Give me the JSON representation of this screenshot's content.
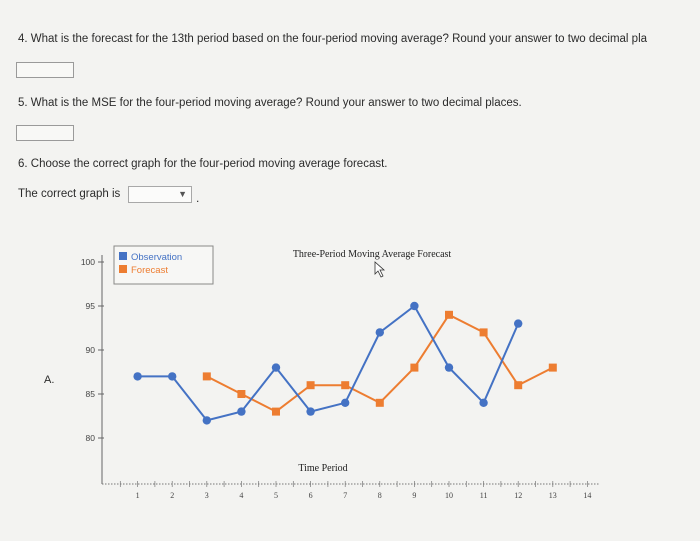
{
  "questions": {
    "q4": "4. What is the forecast for the 13th period based on the four-period moving average? Round your answer to two decimal pla",
    "q5": "5. What is the MSE for the four-period moving average? Round your answer to two decimal places.",
    "q6": "6. Choose the correct graph for the four-period moving average forecast.",
    "q6_prompt": "The correct graph is",
    "q6_selected": "",
    "q6_suffix": "."
  },
  "option_label": "A.",
  "chart_data": {
    "type": "line",
    "title": "Three-Period Moving Average Forecast",
    "xlabel": "Time Period",
    "ylabel": "",
    "xlim": [
      0,
      14
    ],
    "ylim": [
      78,
      101
    ],
    "x_ticks": [
      1,
      2,
      3,
      4,
      5,
      6,
      7,
      8,
      9,
      10,
      11,
      12,
      13,
      14
    ],
    "y_ticks": [
      80,
      85,
      90,
      95,
      100
    ],
    "legend_position": "top-left",
    "series": [
      {
        "name": "Observation",
        "color": "#4472c4",
        "marker": "circle",
        "x": [
          1,
          2,
          3,
          4,
          5,
          6,
          7,
          8,
          9,
          10,
          11,
          12
        ],
        "values": [
          87,
          87,
          82,
          83,
          88,
          83,
          84,
          92,
          95,
          88,
          84,
          93
        ]
      },
      {
        "name": "Forecast",
        "color": "#ed7d31",
        "marker": "square",
        "x": [
          3,
          4,
          5,
          6,
          7,
          8,
          9,
          10,
          11,
          12,
          13
        ],
        "values": [
          87,
          85,
          83,
          86,
          86,
          84,
          88,
          94,
          92,
          86,
          88
        ]
      }
    ]
  }
}
